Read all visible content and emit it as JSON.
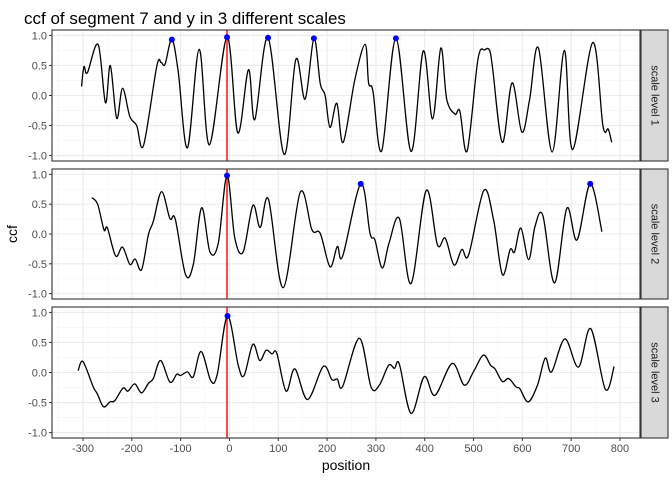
{
  "chart_data": {
    "type": "line",
    "title": "ccf of segment 7 and y in 3 different scales",
    "xlabel": "position",
    "ylabel": "ccf",
    "xlim": [
      -363.5,
      841
    ],
    "ylim": [
      -1.09,
      1.09
    ],
    "x_ticks": [
      -300,
      -200,
      -100,
      0,
      100,
      200,
      300,
      400,
      500,
      600,
      700,
      800
    ],
    "x_tick_labels": [
      "-300",
      "-200",
      "-100",
      "0",
      "100",
      "200",
      "300",
      "400",
      "500",
      "600",
      "700",
      "800"
    ],
    "y_ticks": [
      -1.0,
      -0.5,
      0.0,
      0.5,
      1.0
    ],
    "y_tick_labels": [
      "-1.0",
      "-0.5",
      "0.0",
      "0.5",
      "1.0"
    ],
    "grid": true,
    "vline": {
      "x": -5,
      "color": "#ff0000"
    },
    "line_color": "#000000",
    "peak_color": "#0000ff",
    "strip_color": "#d9d9d9",
    "facets": [
      {
        "label": "scale level 1",
        "points": [
          [
            -303,
            0.15
          ],
          [
            -298,
            0.48
          ],
          [
            -291,
            0.38
          ],
          [
            -269,
            0.85
          ],
          [
            -254,
            -0.12
          ],
          [
            -244,
            0.5
          ],
          [
            -231,
            -0.38
          ],
          [
            -219,
            0.12
          ],
          [
            -204,
            -0.35
          ],
          [
            -190,
            -0.5
          ],
          [
            -176,
            -0.83
          ],
          [
            -149,
            0.48
          ],
          [
            -140,
            0.55
          ],
          [
            -132,
            0.52
          ],
          [
            -118,
            0.93
          ],
          [
            -105,
            0.4
          ],
          [
            -86,
            -0.87
          ],
          [
            -62,
            0.77
          ],
          [
            -41,
            -0.82
          ],
          [
            -5,
            0.97
          ],
          [
            17,
            -0.62
          ],
          [
            39,
            0.43
          ],
          [
            52,
            -0.4
          ],
          [
            79,
            0.96
          ],
          [
            112,
            -0.98
          ],
          [
            136,
            0.6
          ],
          [
            155,
            -0.06
          ],
          [
            173,
            0.95
          ],
          [
            186,
            0.2
          ],
          [
            196,
            0.0
          ],
          [
            206,
            -0.53
          ],
          [
            220,
            -0.13
          ],
          [
            233,
            -0.78
          ],
          [
            257,
            0.27
          ],
          [
            278,
            0.85
          ],
          [
            285,
            0.21
          ],
          [
            294,
            0.07
          ],
          [
            312,
            -0.92
          ],
          [
            341,
            0.95
          ],
          [
            372,
            -0.93
          ],
          [
            397,
            0.74
          ],
          [
            416,
            -0.39
          ],
          [
            433,
            0.79
          ],
          [
            445,
            -0.06
          ],
          [
            462,
            -0.31
          ],
          [
            472,
            -0.26
          ],
          [
            487,
            -0.92
          ],
          [
            509,
            0.6
          ],
          [
            523,
            0.76
          ],
          [
            533,
            0.75
          ],
          [
            539,
            0.46
          ],
          [
            559,
            -0.78
          ],
          [
            579,
            0.21
          ],
          [
            599,
            -0.61
          ],
          [
            615,
            -0.06
          ],
          [
            633,
            0.79
          ],
          [
            661,
            -0.94
          ],
          [
            686,
            0.75
          ],
          [
            703,
            -0.9
          ],
          [
            744,
            0.88
          ],
          [
            765,
            -0.5
          ],
          [
            776,
            -0.56
          ],
          [
            783,
            -0.78
          ]
        ],
        "peaks": [
          [
            -118,
            0.93
          ],
          [
            -5,
            0.97
          ],
          [
            79,
            0.96
          ],
          [
            173,
            0.95
          ],
          [
            341,
            0.95
          ]
        ]
      },
      {
        "label": "scale level 2",
        "points": [
          [
            -282,
            0.61
          ],
          [
            -270,
            0.5
          ],
          [
            -257,
            0.07
          ],
          [
            -250,
            0.1
          ],
          [
            -233,
            -0.37
          ],
          [
            -219,
            -0.22
          ],
          [
            -204,
            -0.51
          ],
          [
            -193,
            -0.42
          ],
          [
            -180,
            -0.6
          ],
          [
            -166,
            -0.01
          ],
          [
            -156,
            0.21
          ],
          [
            -139,
            0.71
          ],
          [
            -122,
            0.26
          ],
          [
            -111,
            0.25
          ],
          [
            -90,
            -0.68
          ],
          [
            -74,
            -0.51
          ],
          [
            -57,
            0.44
          ],
          [
            -40,
            -0.3
          ],
          [
            -23,
            -0.16
          ],
          [
            -5,
            0.98
          ],
          [
            11,
            -0.07
          ],
          [
            28,
            -0.3
          ],
          [
            48,
            0.48
          ],
          [
            63,
            0.11
          ],
          [
            80,
            0.58
          ],
          [
            110,
            -0.9
          ],
          [
            145,
            0.7
          ],
          [
            169,
            0.07
          ],
          [
            186,
            0.01
          ],
          [
            206,
            -0.55
          ],
          [
            221,
            -0.21
          ],
          [
            232,
            -0.37
          ],
          [
            269,
            0.84
          ],
          [
            288,
            0.01
          ],
          [
            298,
            -0.1
          ],
          [
            313,
            -0.57
          ],
          [
            327,
            -0.15
          ],
          [
            348,
            0.26
          ],
          [
            372,
            -0.83
          ],
          [
            403,
            0.73
          ],
          [
            426,
            -0.18
          ],
          [
            442,
            -0.07
          ],
          [
            460,
            -0.52
          ],
          [
            476,
            -0.26
          ],
          [
            490,
            -0.35
          ],
          [
            521,
            0.73
          ],
          [
            541,
            0.24
          ],
          [
            559,
            -0.68
          ],
          [
            575,
            -0.26
          ],
          [
            584,
            -0.3
          ],
          [
            597,
            0.1
          ],
          [
            613,
            -0.43
          ],
          [
            626,
            0.13
          ],
          [
            642,
            0.31
          ],
          [
            666,
            -0.82
          ],
          [
            691,
            0.43
          ],
          [
            712,
            -0.1
          ],
          [
            739,
            0.84
          ],
          [
            763,
            0.04
          ]
        ],
        "peaks": [
          [
            -5,
            0.98
          ],
          [
            269,
            0.84
          ],
          [
            739,
            0.84
          ]
        ]
      },
      {
        "label": "scale level 3",
        "points": [
          [
            -310,
            0.03
          ],
          [
            -300,
            0.18
          ],
          [
            -279,
            -0.24
          ],
          [
            -271,
            -0.35
          ],
          [
            -258,
            -0.57
          ],
          [
            -245,
            -0.49
          ],
          [
            -235,
            -0.47
          ],
          [
            -218,
            -0.26
          ],
          [
            -208,
            -0.31
          ],
          [
            -194,
            -0.19
          ],
          [
            -180,
            -0.34
          ],
          [
            -166,
            -0.18
          ],
          [
            -156,
            -0.1
          ],
          [
            -141,
            0.2
          ],
          [
            -122,
            -0.16
          ],
          [
            -108,
            -0.03
          ],
          [
            -100,
            -0.05
          ],
          [
            -86,
            0.01
          ],
          [
            -74,
            -0.07
          ],
          [
            -58,
            0.35
          ],
          [
            -38,
            -0.14
          ],
          [
            -25,
            -0.03
          ],
          [
            -4,
            0.94
          ],
          [
            18,
            0.12
          ],
          [
            30,
            -0.05
          ],
          [
            48,
            0.47
          ],
          [
            62,
            0.2
          ],
          [
            75,
            0.37
          ],
          [
            87,
            0.31
          ],
          [
            97,
            0.32
          ],
          [
            116,
            -0.31
          ],
          [
            134,
            0.06
          ],
          [
            160,
            -0.45
          ],
          [
            192,
            0.1
          ],
          [
            210,
            -0.12
          ],
          [
            221,
            -0.11
          ],
          [
            232,
            -0.23
          ],
          [
            266,
            0.57
          ],
          [
            290,
            -0.24
          ],
          [
            307,
            -0.21
          ],
          [
            326,
            0.12
          ],
          [
            338,
            0.07
          ],
          [
            348,
            0.14
          ],
          [
            372,
            -0.68
          ],
          [
            399,
            -0.07
          ],
          [
            421,
            -0.38
          ],
          [
            456,
            0.15
          ],
          [
            481,
            -0.21
          ],
          [
            501,
            0.03
          ],
          [
            520,
            0.29
          ],
          [
            535,
            0.12
          ],
          [
            544,
            0.06
          ],
          [
            559,
            -0.15
          ],
          [
            572,
            -0.1
          ],
          [
            587,
            -0.24
          ],
          [
            595,
            -0.27
          ],
          [
            612,
            -0.49
          ],
          [
            631,
            -0.21
          ],
          [
            647,
            0.24
          ],
          [
            660,
            0.01
          ],
          [
            687,
            0.56
          ],
          [
            715,
            0.09
          ],
          [
            740,
            0.73
          ],
          [
            770,
            -0.28
          ],
          [
            788,
            0.1
          ]
        ],
        "peaks": [
          [
            -4,
            0.94
          ]
        ]
      }
    ]
  }
}
